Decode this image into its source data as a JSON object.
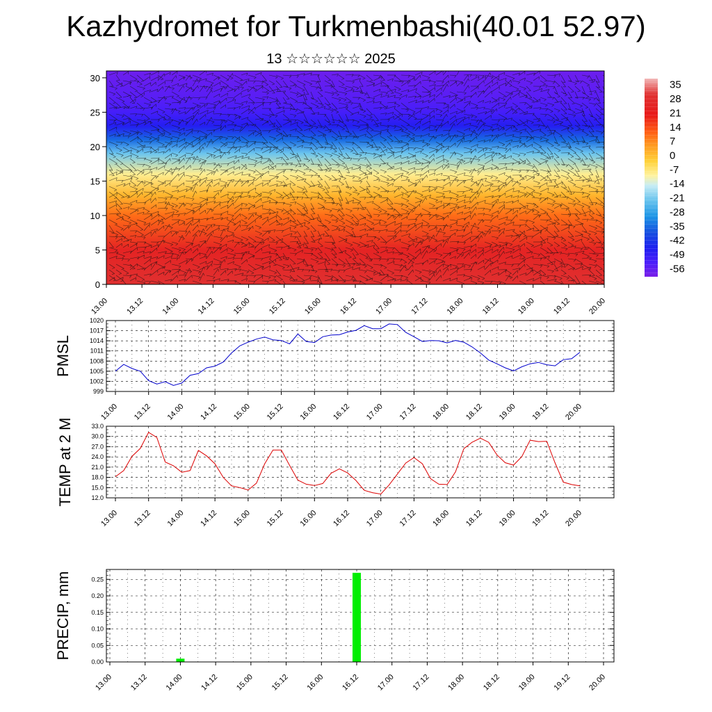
{
  "header": {
    "title": "Kazhydromet for Turkmenbashi(40.01 52.97)",
    "subtitle": "13 ☆☆☆☆☆☆ 2025"
  },
  "colors": {
    "pmsl_line": "#0000cc",
    "temp_line": "#dd0000",
    "precip_bar": "#00ee00",
    "grid": "#000000"
  },
  "chart_data": [
    {
      "type": "heatmap",
      "name": "cross-section",
      "xlabel": "",
      "ylabel": "",
      "x_ticks": [
        "13.00",
        "13.12",
        "14.00",
        "14.12",
        "15.00",
        "15.12",
        "16.00",
        "16.12",
        "17.00",
        "17.12",
        "18.00",
        "18.12",
        "19.00",
        "19.12",
        "20.00"
      ],
      "y_ticks": [
        0,
        5,
        10,
        15,
        20,
        25,
        30
      ],
      "ylim": [
        0,
        31
      ],
      "overlay": "wind barbs",
      "colorbar_labels": [
        35,
        28,
        21,
        14,
        7,
        0,
        -7,
        -14,
        -21,
        -28,
        -35,
        -42,
        -49,
        -56
      ],
      "colorbar_range": [
        -60,
        38
      ],
      "color_levels": [
        {
          "v": 38,
          "c": "#f2b8b8"
        },
        {
          "v": 30,
          "c": "#e03030"
        },
        {
          "v": 20,
          "c": "#e81a1a"
        },
        {
          "v": 12,
          "c": "#ff5a14"
        },
        {
          "v": 5,
          "c": "#ff9a20"
        },
        {
          "v": -3,
          "c": "#ffd23a"
        },
        {
          "v": -10,
          "c": "#fff3a0"
        },
        {
          "v": -15,
          "c": "#c6ecf5"
        },
        {
          "v": -22,
          "c": "#6cc5ee"
        },
        {
          "v": -30,
          "c": "#1e96e6"
        },
        {
          "v": -38,
          "c": "#1450e0"
        },
        {
          "v": -46,
          "c": "#1e1ef0"
        },
        {
          "v": -53,
          "c": "#4b1efa"
        },
        {
          "v": -60,
          "c": "#7a1ee8"
        }
      ],
      "level_temperatures": [
        {
          "z": 0,
          "t": 30
        },
        {
          "z": 5,
          "t": 24
        },
        {
          "z": 10,
          "t": 10
        },
        {
          "z": 13,
          "t": 1
        },
        {
          "z": 16,
          "t": -9
        },
        {
          "z": 19,
          "t": -22
        },
        {
          "z": 21,
          "t": -35
        },
        {
          "z": 23,
          "t": -47
        },
        {
          "z": 25,
          "t": -52
        },
        {
          "z": 27,
          "t": -55
        },
        {
          "z": 31,
          "t": -58
        }
      ]
    },
    {
      "type": "line",
      "name": "pmsl",
      "ylabel": "PMSL",
      "y_ticks": [
        999,
        1002,
        1005,
        1008,
        1011,
        1014,
        1017,
        1020
      ],
      "ylim": [
        999,
        1020
      ],
      "x_ticks": [
        "13.00",
        "13.12",
        "14.00",
        "14.12",
        "15.00",
        "15.12",
        "16.00",
        "16.12",
        "17.00",
        "17.12",
        "18.00",
        "18.12",
        "19.00",
        "19.12",
        "20.00"
      ],
      "grid": true,
      "x": [
        0,
        3,
        6,
        9,
        12,
        15,
        18,
        21,
        24,
        27,
        30,
        33,
        36,
        39,
        42,
        45,
        48,
        51,
        54,
        57,
        60,
        63,
        66,
        69,
        72,
        75,
        78,
        81,
        84,
        87,
        90,
        93,
        96,
        99,
        102,
        105,
        108,
        111,
        114,
        117,
        120,
        123,
        126,
        129,
        132,
        135,
        138,
        141,
        144,
        147,
        150,
        153,
        156,
        159,
        162,
        165,
        168
      ],
      "values": [
        1005,
        1007,
        1005.8,
        1005,
        1002.2,
        1001.2,
        1001.9,
        1000.8,
        1001.5,
        1003.8,
        1004.3,
        1006,
        1006.5,
        1007.7,
        1010.4,
        1012.5,
        1013.6,
        1014.5,
        1015.1,
        1014.3,
        1014.1,
        1013.1,
        1016,
        1013.8,
        1013.5,
        1015.2,
        1015.7,
        1015.8,
        1016.6,
        1017.1,
        1018.5,
        1017.6,
        1017.6,
        1019,
        1018.8,
        1016.5,
        1015.2,
        1013.8,
        1014.1,
        1014,
        1013.4,
        1014.1,
        1013.6,
        1012.2,
        1010.4,
        1008.3,
        1007.2,
        1006,
        1005.1,
        1006.3,
        1007.2,
        1007.6,
        1006.9,
        1006.6,
        1008.4,
        1008.7,
        1010.6
      ]
    },
    {
      "type": "line",
      "name": "temp",
      "ylabel": "TEMP at 2 M",
      "y_ticks": [
        "12.0",
        "15.0",
        "18.0",
        "21.0",
        "24.0",
        "27.0",
        "30.0",
        "33.0"
      ],
      "ylim": [
        12,
        33
      ],
      "x_ticks": [
        "13.00",
        "13.12",
        "14.00",
        "14.12",
        "15.00",
        "15.12",
        "16.00",
        "16.12",
        "17.00",
        "17.12",
        "18.00",
        "18.12",
        "19.00",
        "19.12",
        "20.00"
      ],
      "grid": true,
      "x": [
        0,
        3,
        6,
        9,
        12,
        15,
        18,
        21,
        24,
        27,
        30,
        33,
        36,
        39,
        42,
        45,
        48,
        51,
        54,
        57,
        60,
        63,
        66,
        69,
        72,
        75,
        78,
        81,
        84,
        87,
        90,
        93,
        96,
        99,
        102,
        105,
        108,
        111,
        114,
        117,
        120,
        123,
        126,
        129,
        132,
        135,
        138,
        141,
        144,
        147,
        150,
        153,
        156,
        159,
        162,
        165,
        168
      ],
      "values": [
        18.2,
        20,
        24.2,
        26.5,
        31.2,
        29.7,
        22.5,
        21.4,
        19.5,
        20,
        25.9,
        24.3,
        22,
        18,
        15.5,
        15,
        14.3,
        16.3,
        22,
        26,
        26,
        21.5,
        17.2,
        16,
        15.6,
        16.2,
        19.2,
        20.5,
        19.3,
        17.1,
        14.2,
        13.5,
        13.1,
        15.8,
        19,
        22.2,
        23.8,
        22,
        17.6,
        16,
        15.9,
        19.6,
        26.4,
        28.3,
        29.5,
        28.3,
        24.6,
        22.3,
        21.6,
        24.1,
        28.9,
        28.5,
        28.6,
        22.3,
        16.6,
        15.9,
        15.5
      ]
    },
    {
      "type": "bar",
      "name": "precip",
      "ylabel": "PRECIP, mm",
      "y_ticks": [
        "0.00",
        "0.05",
        "0.10",
        "0.15",
        "0.20",
        "0.25"
      ],
      "ylim": [
        0,
        0.28
      ],
      "x_ticks": [
        "13.00",
        "13.12",
        "14.00",
        "14.12",
        "15.00",
        "15.12",
        "16.00",
        "16.12",
        "17.00",
        "17.12",
        "18.00",
        "18.12",
        "19.00",
        "19.12",
        "20.00"
      ],
      "grid": true,
      "bars": [
        {
          "x": 24,
          "value": 0.01
        },
        {
          "x": 84,
          "value": 0.27
        }
      ]
    }
  ]
}
